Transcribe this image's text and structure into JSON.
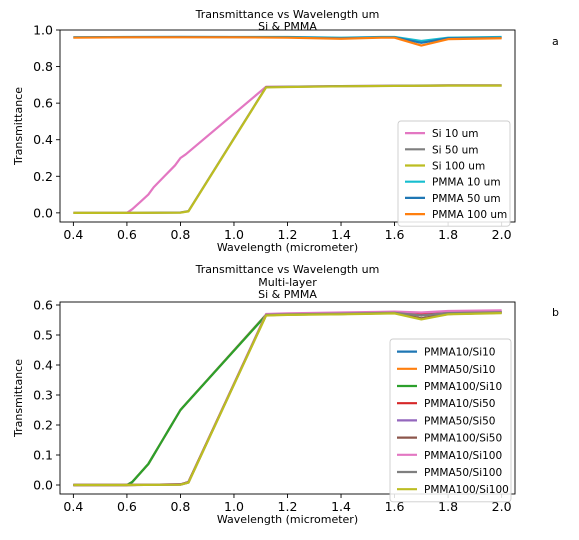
{
  "chart_data": [
    {
      "type": "line",
      "panel_label": "a",
      "title": "Transmittance vs Wavelength um",
      "subtitle": "Si & PMMA",
      "xlabel": "Wavelength (micrometer)",
      "ylabel": "Transmittance",
      "xlim": [
        0.35,
        2.05
      ],
      "ylim": [
        -0.05,
        1.0
      ],
      "xticks": [
        0.4,
        0.6,
        0.8,
        1.0,
        1.2,
        1.4,
        1.6,
        1.8,
        2.0
      ],
      "yticks": [
        0.0,
        0.2,
        0.4,
        0.6,
        0.8,
        1.0
      ],
      "legend_position": "lower-right",
      "grid": false,
      "series": [
        {
          "name": "Si 10 um",
          "color": "#e377c2",
          "points": [
            [
              0.4,
              0.0
            ],
            [
              0.5,
              0.0
            ],
            [
              0.6,
              0.0
            ],
            [
              0.62,
              0.02
            ],
            [
              0.65,
              0.06
            ],
            [
              0.68,
              0.1
            ],
            [
              0.7,
              0.14
            ],
            [
              0.72,
              0.17
            ],
            [
              0.74,
              0.2
            ],
            [
              0.76,
              0.23
            ],
            [
              0.78,
              0.26
            ],
            [
              0.8,
              0.3
            ],
            [
              0.82,
              0.32
            ],
            [
              1.12,
              0.69
            ],
            [
              1.2,
              0.69
            ],
            [
              1.4,
              0.693
            ],
            [
              1.6,
              0.695
            ],
            [
              1.7,
              0.695
            ],
            [
              1.8,
              0.697
            ],
            [
              2.0,
              0.697
            ]
          ]
        },
        {
          "name": "Si 50 um",
          "color": "#7f7f7f",
          "points": [
            [
              0.4,
              0.0
            ],
            [
              0.6,
              0.0
            ],
            [
              0.8,
              0.002
            ],
            [
              0.83,
              0.01
            ],
            [
              1.12,
              0.688
            ],
            [
              1.2,
              0.69
            ],
            [
              1.4,
              0.693
            ],
            [
              1.6,
              0.695
            ],
            [
              1.8,
              0.697
            ],
            [
              2.0,
              0.697
            ]
          ]
        },
        {
          "name": "Si 100 um",
          "color": "#bcbd22",
          "points": [
            [
              0.4,
              0.0
            ],
            [
              0.6,
              0.0
            ],
            [
              0.8,
              0.001
            ],
            [
              0.83,
              0.008
            ],
            [
              1.12,
              0.686
            ],
            [
              1.2,
              0.688
            ],
            [
              1.4,
              0.692
            ],
            [
              1.6,
              0.694
            ],
            [
              1.8,
              0.696
            ],
            [
              2.0,
              0.696
            ]
          ]
        },
        {
          "name": "PMMA 10 um",
          "color": "#17becf",
          "points": [
            [
              0.4,
              0.96
            ],
            [
              0.6,
              0.962
            ],
            [
              0.8,
              0.962
            ],
            [
              1.0,
              0.962
            ],
            [
              1.2,
              0.962
            ],
            [
              1.4,
              0.958
            ],
            [
              1.55,
              0.962
            ],
            [
              1.6,
              0.962
            ],
            [
              1.7,
              0.94
            ],
            [
              1.8,
              0.958
            ],
            [
              2.0,
              0.962
            ]
          ]
        },
        {
          "name": "PMMA 50 um",
          "color": "#1f77b4",
          "points": [
            [
              0.4,
              0.96
            ],
            [
              0.6,
              0.961
            ],
            [
              0.8,
              0.962
            ],
            [
              1.0,
              0.961
            ],
            [
              1.2,
              0.96
            ],
            [
              1.4,
              0.955
            ],
            [
              1.55,
              0.96
            ],
            [
              1.6,
              0.96
            ],
            [
              1.7,
              0.93
            ],
            [
              1.8,
              0.955
            ],
            [
              2.0,
              0.958
            ]
          ]
        },
        {
          "name": "PMMA 100 um",
          "color": "#ff7f0e",
          "points": [
            [
              0.4,
              0.958
            ],
            [
              0.6,
              0.96
            ],
            [
              0.8,
              0.96
            ],
            [
              1.0,
              0.96
            ],
            [
              1.2,
              0.958
            ],
            [
              1.4,
              0.952
            ],
            [
              1.55,
              0.958
            ],
            [
              1.6,
              0.958
            ],
            [
              1.7,
              0.915
            ],
            [
              1.8,
              0.95
            ],
            [
              2.0,
              0.955
            ]
          ]
        }
      ]
    },
    {
      "type": "line",
      "panel_label": "b",
      "title": "Transmittance vs Wavelength um",
      "subtitle": "Multi-layer",
      "subtitle2": "Si & PMMA",
      "xlabel": "Wavelength (micrometer)",
      "ylabel": "Transmittance",
      "xlim": [
        0.35,
        2.05
      ],
      "ylim": [
        -0.03,
        0.61
      ],
      "xticks": [
        0.4,
        0.6,
        0.8,
        1.0,
        1.2,
        1.4,
        1.6,
        1.8,
        2.0
      ],
      "yticks": [
        0.0,
        0.1,
        0.2,
        0.3,
        0.4,
        0.5,
        0.6
      ],
      "legend_position": "lower-right",
      "grid": false,
      "series": [
        {
          "name": "PMMA10/Si10",
          "color": "#1f77b4",
          "points": [
            [
              0.4,
              0.0
            ],
            [
              0.5,
              0.0
            ],
            [
              0.6,
              0.0
            ],
            [
              0.62,
              0.01
            ],
            [
              0.65,
              0.04
            ],
            [
              0.68,
              0.07
            ],
            [
              0.7,
              0.1
            ],
            [
              0.72,
              0.13
            ],
            [
              0.74,
              0.16
            ],
            [
              0.76,
              0.19
            ],
            [
              0.78,
              0.22
            ],
            [
              0.8,
              0.25
            ],
            [
              0.82,
              0.27
            ],
            [
              1.12,
              0.568
            ],
            [
              1.2,
              0.57
            ],
            [
              1.4,
              0.572
            ],
            [
              1.6,
              0.575
            ],
            [
              1.7,
              0.572
            ],
            [
              1.8,
              0.575
            ],
            [
              2.0,
              0.578
            ]
          ]
        },
        {
          "name": "PMMA50/Si10",
          "color": "#ff7f0e",
          "points": [
            [
              0.4,
              0.0
            ],
            [
              0.5,
              0.0
            ],
            [
              0.6,
              0.0
            ],
            [
              0.62,
              0.01
            ],
            [
              0.65,
              0.04
            ],
            [
              0.68,
              0.07
            ],
            [
              0.7,
              0.1
            ],
            [
              0.72,
              0.13
            ],
            [
              0.74,
              0.16
            ],
            [
              0.76,
              0.19
            ],
            [
              0.78,
              0.22
            ],
            [
              0.8,
              0.25
            ],
            [
              0.82,
              0.27
            ],
            [
              1.12,
              0.567
            ],
            [
              1.2,
              0.569
            ],
            [
              1.4,
              0.571
            ],
            [
              1.6,
              0.574
            ],
            [
              1.7,
              0.565
            ],
            [
              1.8,
              0.573
            ],
            [
              2.0,
              0.576
            ]
          ]
        },
        {
          "name": "PMMA100/Si10",
          "color": "#2ca02c",
          "points": [
            [
              0.4,
              0.0
            ],
            [
              0.5,
              0.0
            ],
            [
              0.6,
              0.0
            ],
            [
              0.62,
              0.01
            ],
            [
              0.65,
              0.04
            ],
            [
              0.68,
              0.07
            ],
            [
              0.7,
              0.1
            ],
            [
              0.72,
              0.13
            ],
            [
              0.74,
              0.16
            ],
            [
              0.76,
              0.19
            ],
            [
              0.78,
              0.22
            ],
            [
              0.8,
              0.25
            ],
            [
              0.82,
              0.27
            ],
            [
              1.12,
              0.566
            ],
            [
              1.2,
              0.568
            ],
            [
              1.4,
              0.57
            ],
            [
              1.6,
              0.573
            ],
            [
              1.7,
              0.555
            ],
            [
              1.8,
              0.57
            ],
            [
              2.0,
              0.574
            ]
          ]
        },
        {
          "name": "PMMA10/Si50",
          "color": "#d62728",
          "points": [
            [
              0.4,
              0.0
            ],
            [
              0.6,
              0.0
            ],
            [
              0.8,
              0.002
            ],
            [
              0.83,
              0.01
            ],
            [
              1.12,
              0.568
            ],
            [
              1.2,
              0.57
            ],
            [
              1.4,
              0.572
            ],
            [
              1.6,
              0.575
            ],
            [
              1.7,
              0.572
            ],
            [
              1.8,
              0.575
            ],
            [
              2.0,
              0.578
            ]
          ]
        },
        {
          "name": "PMMA50/Si50",
          "color": "#9467bd",
          "points": [
            [
              0.4,
              0.0
            ],
            [
              0.6,
              0.0
            ],
            [
              0.8,
              0.002
            ],
            [
              0.83,
              0.01
            ],
            [
              1.12,
              0.567
            ],
            [
              1.2,
              0.569
            ],
            [
              1.4,
              0.571
            ],
            [
              1.6,
              0.574
            ],
            [
              1.7,
              0.565
            ],
            [
              1.8,
              0.573
            ],
            [
              2.0,
              0.576
            ]
          ]
        },
        {
          "name": "PMMA100/Si50",
          "color": "#8c564b",
          "points": [
            [
              0.4,
              0.0
            ],
            [
              0.6,
              0.0
            ],
            [
              0.8,
              0.002
            ],
            [
              0.83,
              0.01
            ],
            [
              1.12,
              0.566
            ],
            [
              1.2,
              0.568
            ],
            [
              1.4,
              0.57
            ],
            [
              1.6,
              0.573
            ],
            [
              1.7,
              0.555
            ],
            [
              1.8,
              0.57
            ],
            [
              2.0,
              0.574
            ]
          ]
        },
        {
          "name": "PMMA10/Si100",
          "color": "#e377c2",
          "points": [
            [
              0.4,
              0.0
            ],
            [
              0.6,
              0.0
            ],
            [
              0.8,
              0.001
            ],
            [
              0.83,
              0.008
            ],
            [
              1.12,
              0.57
            ],
            [
              1.2,
              0.572
            ],
            [
              1.4,
              0.575
            ],
            [
              1.6,
              0.578
            ],
            [
              1.7,
              0.575
            ],
            [
              1.8,
              0.58
            ],
            [
              2.0,
              0.582
            ]
          ]
        },
        {
          "name": "PMMA50/Si100",
          "color": "#7f7f7f",
          "points": [
            [
              0.4,
              0.0
            ],
            [
              0.6,
              0.0
            ],
            [
              0.8,
              0.001
            ],
            [
              0.83,
              0.008
            ],
            [
              1.12,
              0.567
            ],
            [
              1.2,
              0.569
            ],
            [
              1.4,
              0.571
            ],
            [
              1.6,
              0.574
            ],
            [
              1.7,
              0.565
            ],
            [
              1.8,
              0.573
            ],
            [
              2.0,
              0.576
            ]
          ]
        },
        {
          "name": "PMMA100/Si100",
          "color": "#bcbd22",
          "points": [
            [
              0.4,
              0.0
            ],
            [
              0.6,
              0.0
            ],
            [
              0.8,
              0.001
            ],
            [
              0.83,
              0.008
            ],
            [
              1.12,
              0.565
            ],
            [
              1.2,
              0.567
            ],
            [
              1.4,
              0.569
            ],
            [
              1.6,
              0.572
            ],
            [
              1.7,
              0.552
            ],
            [
              1.8,
              0.569
            ],
            [
              2.0,
              0.573
            ]
          ]
        }
      ]
    }
  ]
}
